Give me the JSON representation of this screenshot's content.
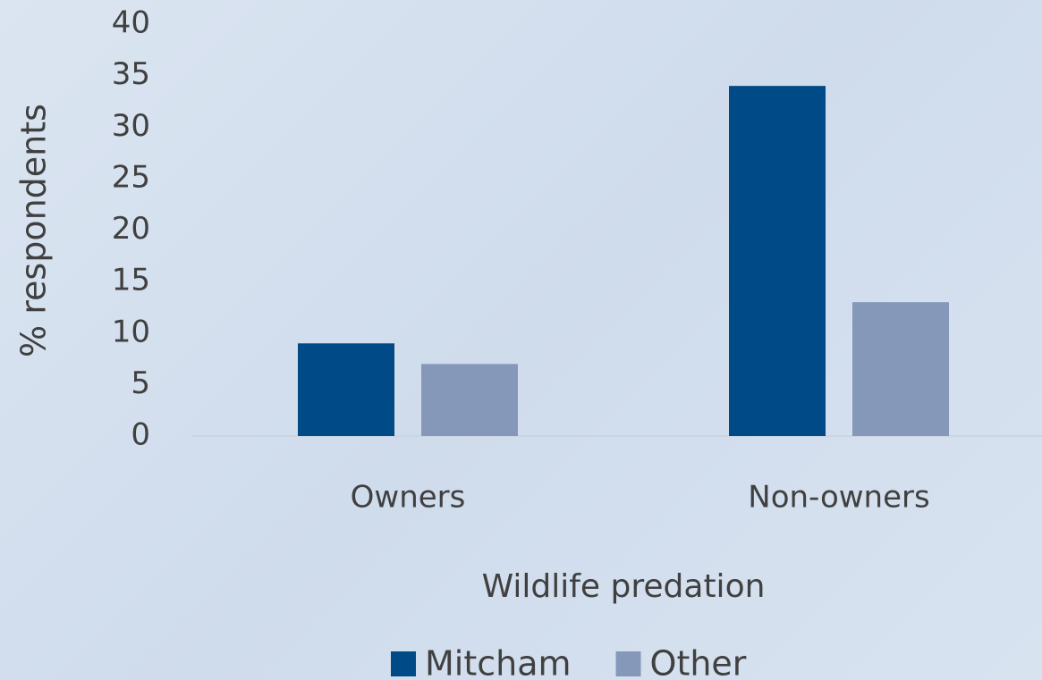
{
  "chart_data": {
    "type": "bar",
    "x_label": "Wildlife predation",
    "y_label": "% respondents",
    "categories": [
      "Owners",
      "Non-owners"
    ],
    "series": [
      {
        "name": "Mitcham",
        "color": "#004b87",
        "values": [
          9,
          34
        ]
      },
      {
        "name": "Other",
        "color": "#8598ba",
        "values": [
          7,
          13
        ]
      }
    ],
    "ylim": [
      0,
      40
    ],
    "yticks": [
      0,
      5,
      10,
      15,
      20,
      25,
      30,
      35,
      40
    ]
  }
}
